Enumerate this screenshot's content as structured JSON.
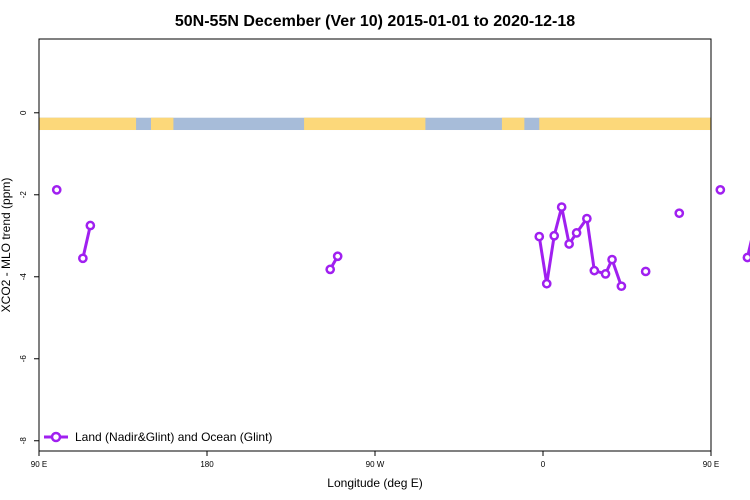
{
  "chart_data": {
    "type": "line",
    "title": "50N-55N December (Ver 10)   2015-01-01 to 2020-12-18",
    "xlabel": "Longitude (deg E)",
    "ylabel": "XCO2 - MLO trend (ppm)",
    "xlim": [
      90,
      450
    ],
    "ylim": [
      -8.25,
      1.8
    ],
    "xticks": [
      {
        "value": 90,
        "label": "90 E"
      },
      {
        "value": 180,
        "label": "180"
      },
      {
        "value": 270,
        "label": "90 W"
      },
      {
        "value": 360,
        "label": "0"
      },
      {
        "value": 450,
        "label": "90 E"
      },
      {
        "value": 540,
        "label": "180"
      }
    ],
    "yticks": [
      {
        "value": 0,
        "label": "0"
      },
      {
        "value": -2,
        "label": "-2"
      },
      {
        "value": -4,
        "label": "-4"
      },
      {
        "value": -6,
        "label": "-6"
      },
      {
        "value": -8,
        "label": "-8"
      }
    ],
    "grid": false,
    "legend": {
      "position": "bottom-left"
    },
    "land_ocean_strip": {
      "y_range": [
        -0.42,
        -0.12
      ],
      "ocean_color": "#a7bcd9",
      "land_color": "#fcd87a",
      "land_segments": [
        [
          90,
          142
        ],
        [
          150,
          162
        ],
        [
          232,
          297
        ],
        [
          338,
          350
        ],
        [
          358,
          472
        ],
        [
          520,
          534
        ]
      ]
    },
    "series": [
      {
        "name": "Land (Nadir&Glint) and Ocean (Glint)",
        "color": "#a020f0",
        "segments": [
          [
            [
              99.5,
              -1.88
            ]
          ],
          [
            [
              113.5,
              -3.55
            ],
            [
              117.5,
              -2.75
            ]
          ],
          [
            [
              246,
              -3.82
            ],
            [
              250,
              -3.5
            ]
          ],
          [
            [
              358,
              -3.02
            ],
            [
              362,
              -4.17
            ],
            [
              366,
              -3.0
            ],
            [
              370,
              -2.3
            ],
            [
              374,
              -3.2
            ],
            [
              378,
              -2.93
            ],
            [
              383.5,
              -2.58
            ],
            [
              387.5,
              -3.85
            ],
            [
              393.5,
              -3.93
            ],
            [
              397,
              -3.58
            ],
            [
              402,
              -4.23
            ]
          ],
          [
            [
              415,
              -3.87
            ]
          ],
          [
            [
              433,
              -2.45
            ]
          ],
          [
            [
              455,
              -1.88
            ]
          ],
          [
            [
              469.5,
              -3.53
            ],
            [
              473.5,
              -2.75
            ]
          ]
        ]
      }
    ]
  }
}
